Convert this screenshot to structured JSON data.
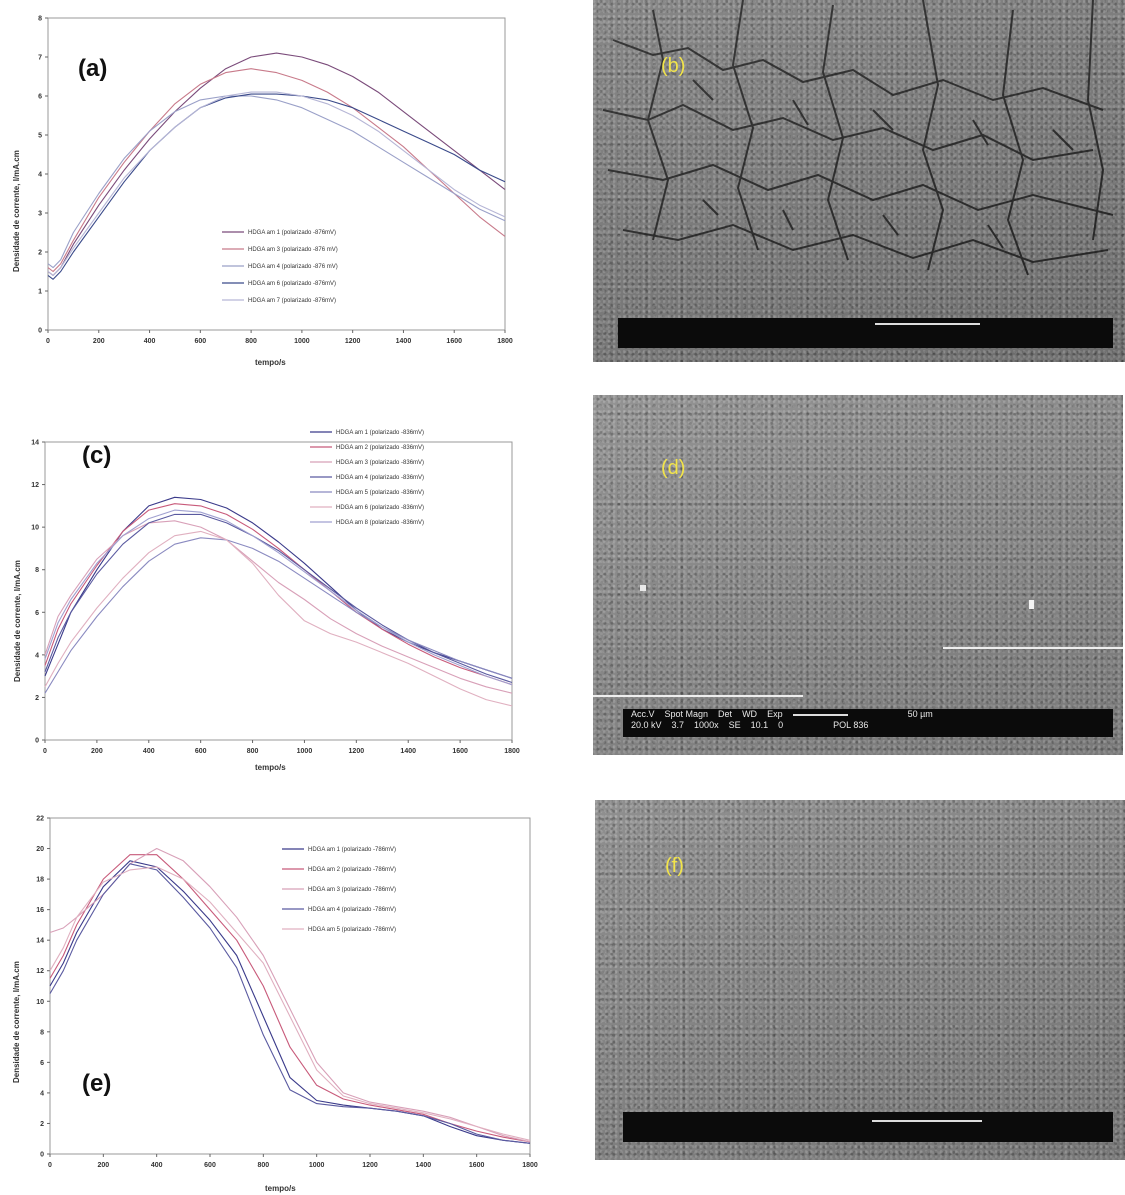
{
  "panel_labels": {
    "a": "(a)",
    "b": "(b)",
    "c": "(c)",
    "d": "(d)",
    "e": "(e)",
    "f": "(f)"
  },
  "sem": {
    "d": {
      "header": [
        "Acc.V",
        "Spot Magn",
        "Det",
        "WD",
        "Exp"
      ],
      "values": [
        "20.0 kV",
        "3.7",
        "1000x",
        "SE",
        "10.1",
        "0",
        "POL 836"
      ],
      "scale": "50 µm"
    }
  },
  "chart_data": [
    {
      "type": "line",
      "title": "",
      "xlabel": "tempo/s",
      "ylabel": "Densidade de corrente, I/mA.cm",
      "xlim": [
        0,
        1800
      ],
      "ylim": [
        0,
        8
      ],
      "xticks": [
        0,
        200,
        400,
        600,
        800,
        1000,
        1200,
        1400,
        1600,
        1800
      ],
      "yticks": [
        0,
        1,
        2,
        3,
        4,
        5,
        6,
        7,
        8
      ],
      "legend_position": "center-right",
      "series": [
        {
          "name": "HDGA am 1 (polarizado -876mV)",
          "color": "#7a4b7a",
          "x": [
            0,
            20,
            50,
            100,
            200,
            300,
            400,
            500,
            600,
            700,
            800,
            900,
            1000,
            1100,
            1200,
            1300,
            1400,
            1500,
            1600,
            1700,
            1800
          ],
          "y": [
            1.5,
            1.4,
            1.6,
            2.2,
            3.2,
            4.1,
            4.9,
            5.6,
            6.2,
            6.7,
            7.0,
            7.1,
            7.0,
            6.8,
            6.5,
            6.1,
            5.6,
            5.1,
            4.6,
            4.1,
            3.6
          ]
        },
        {
          "name": "HDGA am 3 (polarizado -876 mV)",
          "color": "#c87a8a",
          "x": [
            0,
            20,
            50,
            100,
            200,
            300,
            400,
            500,
            600,
            700,
            800,
            900,
            1000,
            1100,
            1200,
            1300,
            1400,
            1500,
            1600,
            1700,
            1800
          ],
          "y": [
            1.6,
            1.5,
            1.7,
            2.3,
            3.4,
            4.3,
            5.1,
            5.8,
            6.3,
            6.6,
            6.7,
            6.6,
            6.4,
            6.1,
            5.7,
            5.2,
            4.7,
            4.1,
            3.5,
            2.9,
            2.4
          ]
        },
        {
          "name": "HDGA am 4 (polarizado -876 mV)",
          "color": "#9aa0c8",
          "x": [
            0,
            20,
            50,
            100,
            200,
            300,
            400,
            500,
            600,
            700,
            800,
            900,
            1000,
            1100,
            1200,
            1300,
            1400,
            1500,
            1600,
            1700,
            1800
          ],
          "y": [
            1.7,
            1.6,
            1.8,
            2.5,
            3.5,
            4.4,
            5.1,
            5.6,
            5.9,
            6.0,
            6.0,
            5.9,
            5.7,
            5.4,
            5.1,
            4.7,
            4.3,
            3.9,
            3.5,
            3.1,
            2.8
          ]
        },
        {
          "name": "HDGA am 6 (polarizado -876mV)",
          "color": "#3a4a8a",
          "x": [
            0,
            20,
            50,
            100,
            200,
            300,
            400,
            500,
            600,
            700,
            800,
            900,
            1000,
            1100,
            1200,
            1300,
            1400,
            1500,
            1600,
            1700,
            1800
          ],
          "y": [
            1.4,
            1.3,
            1.5,
            2.0,
            2.9,
            3.8,
            4.6,
            5.2,
            5.7,
            5.95,
            6.05,
            6.05,
            6.0,
            5.9,
            5.7,
            5.4,
            5.1,
            4.8,
            4.5,
            4.1,
            3.8
          ]
        },
        {
          "name": "HDGA am 7 (polarizado -876mV)",
          "color": "#b6b6d6",
          "x": [
            0,
            20,
            50,
            100,
            200,
            300,
            400,
            500,
            600,
            700,
            800,
            900,
            1000,
            1100,
            1200,
            1300,
            1400,
            1500,
            1600,
            1700,
            1800
          ],
          "y": [
            1.5,
            1.4,
            1.6,
            2.1,
            3.0,
            3.9,
            4.6,
            5.2,
            5.7,
            6.0,
            6.1,
            6.1,
            6.0,
            5.8,
            5.5,
            5.1,
            4.6,
            4.1,
            3.6,
            3.2,
            2.9
          ]
        }
      ]
    },
    {
      "type": "line",
      "title": "",
      "xlabel": "tempo/s",
      "ylabel": "Densidade de corrente, I/mA.cm",
      "xlim": [
        0,
        1800
      ],
      "ylim": [
        0,
        14
      ],
      "xticks": [
        0,
        200,
        400,
        600,
        800,
        1000,
        1200,
        1400,
        1600,
        1800
      ],
      "yticks": [
        0,
        2,
        4,
        6,
        8,
        10,
        12,
        14
      ],
      "legend_position": "top-right",
      "series": [
        {
          "name": "HDGA am 1 (polarizado -836mV)",
          "color": "#3a3a8a",
          "x": [
            0,
            50,
            100,
            200,
            300,
            400,
            500,
            600,
            700,
            800,
            900,
            1000,
            1100,
            1200,
            1300,
            1400,
            1500,
            1600,
            1700,
            1800
          ],
          "y": [
            3.0,
            4.5,
            6.0,
            8.0,
            9.8,
            11.0,
            11.4,
            11.3,
            10.9,
            10.2,
            9.3,
            8.3,
            7.2,
            6.1,
            5.2,
            4.6,
            4.1,
            3.7,
            3.3,
            2.9
          ]
        },
        {
          "name": "HDGA am 2 (polarizado -836mV)",
          "color": "#c85a7a",
          "x": [
            0,
            50,
            100,
            200,
            300,
            400,
            500,
            600,
            700,
            800,
            900,
            1000,
            1100,
            1200,
            1300,
            1400,
            1500,
            1600,
            1700,
            1800
          ],
          "y": [
            3.5,
            5.2,
            6.4,
            8.2,
            9.8,
            10.8,
            11.1,
            11.0,
            10.6,
            9.9,
            9.0,
            8.0,
            7.0,
            6.0,
            5.2,
            4.5,
            3.9,
            3.4,
            3.0,
            2.6
          ]
        },
        {
          "name": "HDGA am 3 (polarizado -836mV)",
          "color": "#d8a0b8",
          "x": [
            0,
            50,
            100,
            200,
            300,
            400,
            500,
            600,
            700,
            800,
            900,
            1000,
            1100,
            1200,
            1300,
            1400,
            1500,
            1600,
            1700,
            1800
          ],
          "y": [
            4.0,
            5.8,
            6.8,
            8.5,
            9.6,
            10.2,
            10.3,
            10.0,
            9.4,
            8.4,
            7.4,
            6.6,
            5.7,
            5.0,
            4.4,
            3.9,
            3.4,
            2.9,
            2.5,
            2.2
          ]
        },
        {
          "name": "HDGA am 4 (polarizado -836mV)",
          "color": "#5a5aa0",
          "x": [
            0,
            50,
            100,
            200,
            300,
            400,
            500,
            600,
            700,
            800,
            900,
            1000,
            1100,
            1200,
            1300,
            1400,
            1500,
            1600,
            1700,
            1800
          ],
          "y": [
            3.2,
            4.8,
            6.0,
            7.8,
            9.2,
            10.2,
            10.6,
            10.6,
            10.2,
            9.6,
            8.9,
            8.0,
            7.1,
            6.2,
            5.4,
            4.7,
            4.1,
            3.6,
            3.1,
            2.7
          ]
        },
        {
          "name": "HDGA am 5 (polarizado -836mV)",
          "color": "#8a8ac0",
          "x": [
            0,
            50,
            100,
            200,
            300,
            400,
            500,
            600,
            700,
            800,
            900,
            1000,
            1100,
            1200,
            1300,
            1400,
            1500,
            1600,
            1700,
            1800
          ],
          "y": [
            2.2,
            3.2,
            4.2,
            5.8,
            7.2,
            8.4,
            9.2,
            9.5,
            9.4,
            9.0,
            8.4,
            7.6,
            6.8,
            6.0,
            5.3,
            4.7,
            4.2,
            3.7,
            3.3,
            2.9
          ]
        },
        {
          "name": "HDGA am 6 (polarizado -836mV)",
          "color": "#e0b0c0",
          "x": [
            0,
            50,
            100,
            200,
            300,
            400,
            500,
            600,
            700,
            800,
            900,
            1000,
            1100,
            1200,
            1300,
            1400,
            1500,
            1600,
            1700,
            1800
          ],
          "y": [
            2.5,
            3.6,
            4.6,
            6.2,
            7.6,
            8.8,
            9.6,
            9.8,
            9.4,
            8.3,
            6.8,
            5.6,
            5.0,
            4.6,
            4.1,
            3.6,
            3.0,
            2.4,
            1.9,
            1.6
          ]
        },
        {
          "name": "HDGA am 8 (polarizado -836mV)",
          "color": "#a0a0d0",
          "x": [
            0,
            50,
            100,
            200,
            300,
            400,
            500,
            600,
            700,
            800,
            900,
            1000,
            1100,
            1200,
            1300,
            1400,
            1500,
            1600,
            1700,
            1800
          ],
          "y": [
            3.8,
            5.5,
            6.6,
            8.3,
            9.6,
            10.4,
            10.8,
            10.7,
            10.3,
            9.6,
            8.8,
            7.9,
            7.0,
            6.1,
            5.3,
            4.6,
            4.0,
            3.5,
            3.0,
            2.6
          ]
        }
      ]
    },
    {
      "type": "line",
      "title": "",
      "xlabel": "tempo/s",
      "ylabel": "Densidade de corrente, I/mA.cm",
      "xlim": [
        0,
        1800
      ],
      "ylim": [
        0,
        22
      ],
      "xticks": [
        0,
        200,
        400,
        600,
        800,
        1000,
        1200,
        1400,
        1600,
        1800
      ],
      "yticks": [
        0,
        2,
        4,
        6,
        8,
        10,
        12,
        14,
        16,
        18,
        20,
        22
      ],
      "legend_position": "top-right",
      "series": [
        {
          "name": "HDGA am 1 (polarizado -786mV)",
          "color": "#3a3a8a",
          "x": [
            0,
            50,
            100,
            200,
            300,
            400,
            500,
            600,
            700,
            800,
            900,
            1000,
            1100,
            1200,
            1300,
            1400,
            1500,
            1600,
            1700,
            1800
          ],
          "y": [
            11.0,
            12.5,
            14.5,
            17.5,
            19.2,
            18.8,
            17.2,
            15.3,
            13.0,
            9.0,
            5.0,
            3.5,
            3.2,
            3.0,
            2.8,
            2.5,
            1.8,
            1.2,
            0.9,
            0.7
          ]
        },
        {
          "name": "HDGA am 2 (polarizado -786mV)",
          "color": "#c85a7a",
          "x": [
            0,
            50,
            100,
            200,
            300,
            400,
            500,
            600,
            700,
            800,
            900,
            1000,
            1100,
            1200,
            1300,
            1400,
            1500,
            1600,
            1700,
            1800
          ],
          "y": [
            11.5,
            13.0,
            15.0,
            18.0,
            19.6,
            19.6,
            18.0,
            16.0,
            14.0,
            11.0,
            7.0,
            4.5,
            3.6,
            3.2,
            2.9,
            2.6,
            2.0,
            1.5,
            1.1,
            0.8
          ]
        },
        {
          "name": "HDGA am 3 (polarizado -786mV)",
          "color": "#d8a0b8",
          "x": [
            0,
            50,
            100,
            200,
            300,
            400,
            500,
            600,
            700,
            800,
            900,
            1000,
            1100,
            1200,
            1300,
            1400,
            1500,
            1600,
            1700,
            1800
          ],
          "y": [
            14.5,
            14.8,
            15.5,
            17.0,
            19.0,
            20.0,
            19.2,
            17.5,
            15.5,
            13.0,
            9.5,
            6.0,
            4.0,
            3.4,
            3.1,
            2.8,
            2.4,
            1.8,
            1.2,
            0.8
          ]
        },
        {
          "name": "HDGA am 4 (polarizado -786mV)",
          "color": "#5a5aa0",
          "x": [
            0,
            50,
            100,
            200,
            300,
            400,
            500,
            600,
            700,
            800,
            900,
            1000,
            1100,
            1200,
            1300,
            1400,
            1500,
            1600,
            1700,
            1800
          ],
          "y": [
            10.5,
            12.0,
            14.0,
            17.0,
            19.0,
            18.6,
            16.8,
            14.8,
            12.2,
            7.8,
            4.2,
            3.3,
            3.1,
            3.0,
            2.8,
            2.5,
            2.0,
            1.3,
            0.9,
            0.7
          ]
        },
        {
          "name": "HDGA am 5 (polarizado -786mV)",
          "color": "#e0b0c0",
          "x": [
            0,
            50,
            100,
            200,
            300,
            400,
            500,
            600,
            700,
            800,
            900,
            1000,
            1100,
            1200,
            1300,
            1400,
            1500,
            1600,
            1700,
            1800
          ],
          "y": [
            12.0,
            13.5,
            15.5,
            17.8,
            18.6,
            18.8,
            18.0,
            16.5,
            14.5,
            12.5,
            9.0,
            5.5,
            3.8,
            3.3,
            3.0,
            2.7,
            2.3,
            1.8,
            1.3,
            0.9
          ]
        }
      ]
    }
  ]
}
